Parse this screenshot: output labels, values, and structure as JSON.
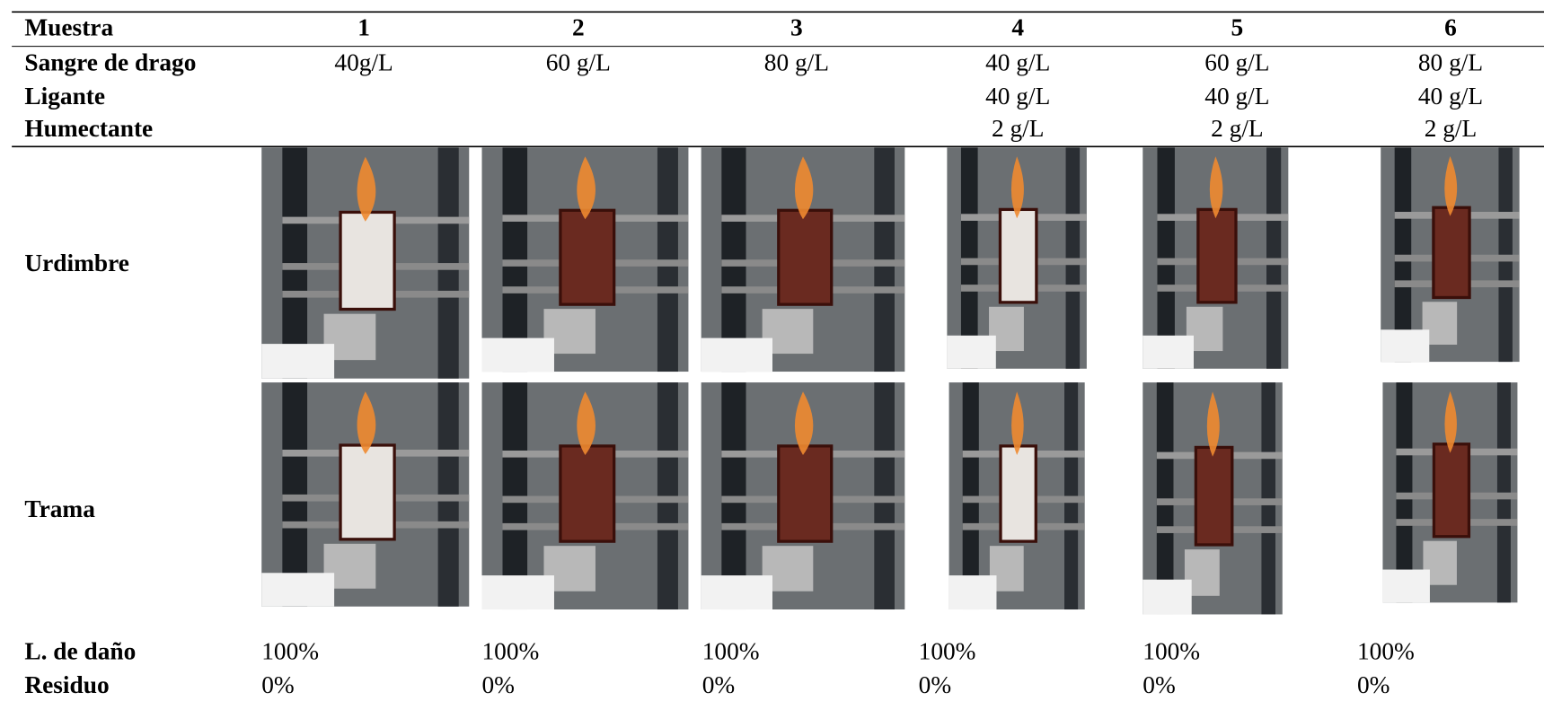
{
  "table": {
    "header": [
      "Muestra",
      "1",
      "2",
      "3",
      "4",
      "5",
      "6"
    ],
    "rows": [
      {
        "label": "Sangre de drago",
        "values": [
          "40g/L",
          "60 g/L",
          "80 g/L",
          "40 g/L",
          "60 g/L",
          "80 g/L"
        ]
      },
      {
        "label": "Ligante",
        "values": [
          null,
          null,
          null,
          "40 g/L",
          "40 g/L",
          "40 g/L"
        ]
      },
      {
        "label": "Humectante",
        "values": [
          null,
          null,
          null,
          "2 g/L",
          "2 g/L",
          "2 g/L"
        ]
      }
    ],
    "photo_rows": [
      "Urdimbre",
      "Trama"
    ],
    "result_rows": [
      {
        "label": "L. de daño",
        "values": [
          "100%",
          "100%",
          "100%",
          "100%",
          "100%",
          "100%"
        ]
      },
      {
        "label": "Residuo",
        "values": [
          "0%",
          "0%",
          "0%",
          "0%",
          "0%",
          "0%"
        ]
      }
    ]
  }
}
